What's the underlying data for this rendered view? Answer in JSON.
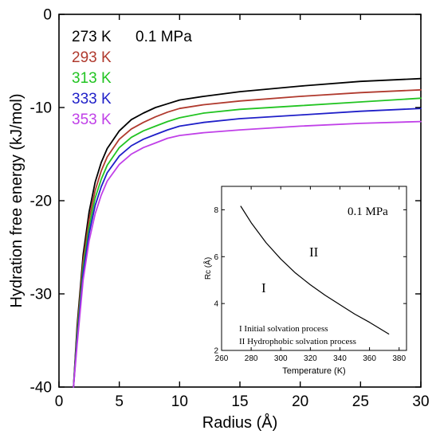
{
  "chart_data": [
    {
      "type": "line",
      "xlabel": "Radius (Å)",
      "ylabel": "Hydration free energy (kJ/mol)",
      "xlim": [
        0,
        30
      ],
      "ylim": [
        -40,
        0
      ],
      "xticks": [
        0,
        5,
        10,
        15,
        20,
        25,
        30
      ],
      "yticks": [
        0,
        -10,
        -20,
        -30,
        -40
      ],
      "grid": false,
      "legend_placement": "top-left",
      "annotation": "0.1 MPa",
      "x": [
        1.2,
        1.5,
        2,
        2.5,
        3,
        3.5,
        4,
        5,
        6,
        7,
        8,
        9,
        10,
        12,
        15,
        20,
        25,
        30
      ],
      "series": [
        {
          "name": "273 K",
          "color": "#000000",
          "values": [
            -40.0,
            -33.5,
            -25.8,
            -21.2,
            -18.0,
            -15.9,
            -14.4,
            -12.5,
            -11.3,
            -10.6,
            -10.0,
            -9.6,
            -9.2,
            -8.8,
            -8.3,
            -7.7,
            -7.2,
            -6.9
          ]
        },
        {
          "name": "293 K",
          "color": "#b03a2e",
          "values": [
            -40.0,
            -34.0,
            -26.5,
            -22.0,
            -18.9,
            -16.8,
            -15.3,
            -13.4,
            -12.3,
            -11.6,
            -11.0,
            -10.5,
            -10.1,
            -9.7,
            -9.3,
            -8.8,
            -8.4,
            -8.1
          ]
        },
        {
          "name": "313 K",
          "color": "#22c422",
          "values": [
            -40.0,
            -34.5,
            -27.2,
            -22.8,
            -19.7,
            -17.7,
            -16.2,
            -14.3,
            -13.2,
            -12.5,
            -12.0,
            -11.5,
            -11.1,
            -10.6,
            -10.2,
            -9.8,
            -9.4,
            -9.0
          ]
        },
        {
          "name": "333 K",
          "color": "#1f1fc8",
          "values": [
            -40.0,
            -35.0,
            -27.8,
            -23.5,
            -20.5,
            -18.5,
            -17.0,
            -15.2,
            -14.1,
            -13.4,
            -12.9,
            -12.4,
            -12.0,
            -11.6,
            -11.2,
            -10.8,
            -10.4,
            -10.1
          ]
        },
        {
          "name": "353 K",
          "color": "#c040e8",
          "values": [
            -40.0,
            -35.5,
            -28.5,
            -24.3,
            -21.4,
            -19.4,
            -17.9,
            -16.1,
            -15.0,
            -14.3,
            -13.8,
            -13.3,
            -13.0,
            -12.7,
            -12.4,
            -12.0,
            -11.7,
            -11.5
          ]
        }
      ]
    },
    {
      "type": "line",
      "xlabel": "Temperature (K)",
      "ylabel": "Rc (Å)",
      "xlim": [
        260,
        385
      ],
      "ylim": [
        2,
        9
      ],
      "xticks": [
        260,
        280,
        300,
        320,
        340,
        360,
        380
      ],
      "yticks": [
        2,
        4,
        6,
        8
      ],
      "grid": false,
      "annotation": "0.1 MPa",
      "region_labels": [
        "I",
        "II"
      ],
      "notes": [
        "I  Initial solvation process",
        "II Hydrophobic  solvation process"
      ],
      "x": [
        273,
        280,
        290,
        300,
        310,
        320,
        330,
        340,
        350,
        360,
        373
      ],
      "series": [
        {
          "color": "#000000",
          "values": [
            8.15,
            7.45,
            6.6,
            5.9,
            5.3,
            4.8,
            4.35,
            3.95,
            3.55,
            3.2,
            2.7
          ]
        }
      ]
    }
  ]
}
